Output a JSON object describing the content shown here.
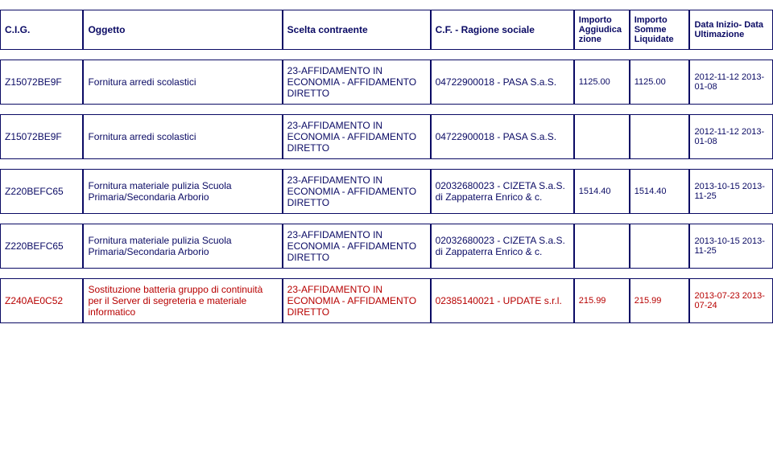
{
  "columns": {
    "cig": "C.I.G.",
    "oggetto": "Oggetto",
    "scelta": "Scelta contraente",
    "cf": "C.F. - Ragione sociale",
    "aggiudica": "Importo Aggiudica zione",
    "liquidate": "Importo Somme Liquidate",
    "date": "Data Inizio- Data Ultimazione"
  },
  "rows": [
    {
      "red": false,
      "cig": "Z15072BE9F",
      "oggetto": "Fornitura arredi scolastici",
      "scelta": "23-AFFIDAMENTO IN ECONOMIA - AFFIDAMENTO DIRETTO",
      "cf": "04722900018 - PASA S.a.S.",
      "aggiudica": "1125.00",
      "liquidate": "1125.00",
      "date": "2012-11-12 2013-01-08"
    },
    {
      "red": false,
      "cig": "Z15072BE9F",
      "oggetto": "Fornitura arredi scolastici",
      "scelta": "23-AFFIDAMENTO IN ECONOMIA - AFFIDAMENTO DIRETTO",
      "cf": "04722900018 - PASA S.a.S.",
      "aggiudica": "",
      "liquidate": "",
      "date": "2012-11-12 2013-01-08"
    },
    {
      "red": false,
      "cig": "Z220BEFC65",
      "oggetto": "Fornitura materiale pulizia Scuola Primaria/Secondaria Arborio",
      "scelta": "23-AFFIDAMENTO IN ECONOMIA - AFFIDAMENTO DIRETTO",
      "cf": "02032680023 - CIZETA S.a.S. di Zappaterra Enrico & c.",
      "aggiudica": "1514.40",
      "liquidate": "1514.40",
      "date": "2013-10-15 2013-11-25"
    },
    {
      "red": false,
      "cig": "Z220BEFC65",
      "oggetto": "Fornitura materiale pulizia Scuola Primaria/Secondaria Arborio",
      "scelta": "23-AFFIDAMENTO IN ECONOMIA - AFFIDAMENTO DIRETTO",
      "cf": "02032680023 - CIZETA S.a.S. di Zappaterra Enrico & c.",
      "aggiudica": "",
      "liquidate": "",
      "date": "2013-10-15 2013-11-25"
    },
    {
      "red": true,
      "cig": "Z240AE0C52",
      "oggetto": "Sostituzione batteria gruppo di continuità per il Server di segreteria e materiale informatico",
      "scelta": "23-AFFIDAMENTO IN ECONOMIA - AFFIDAMENTO DIRETTO",
      "cf": "02385140021 - UPDATE s.r.l.",
      "aggiudica": "215.99",
      "liquidate": "215.99",
      "date": "2013-07-23 2013-07-24"
    }
  ]
}
